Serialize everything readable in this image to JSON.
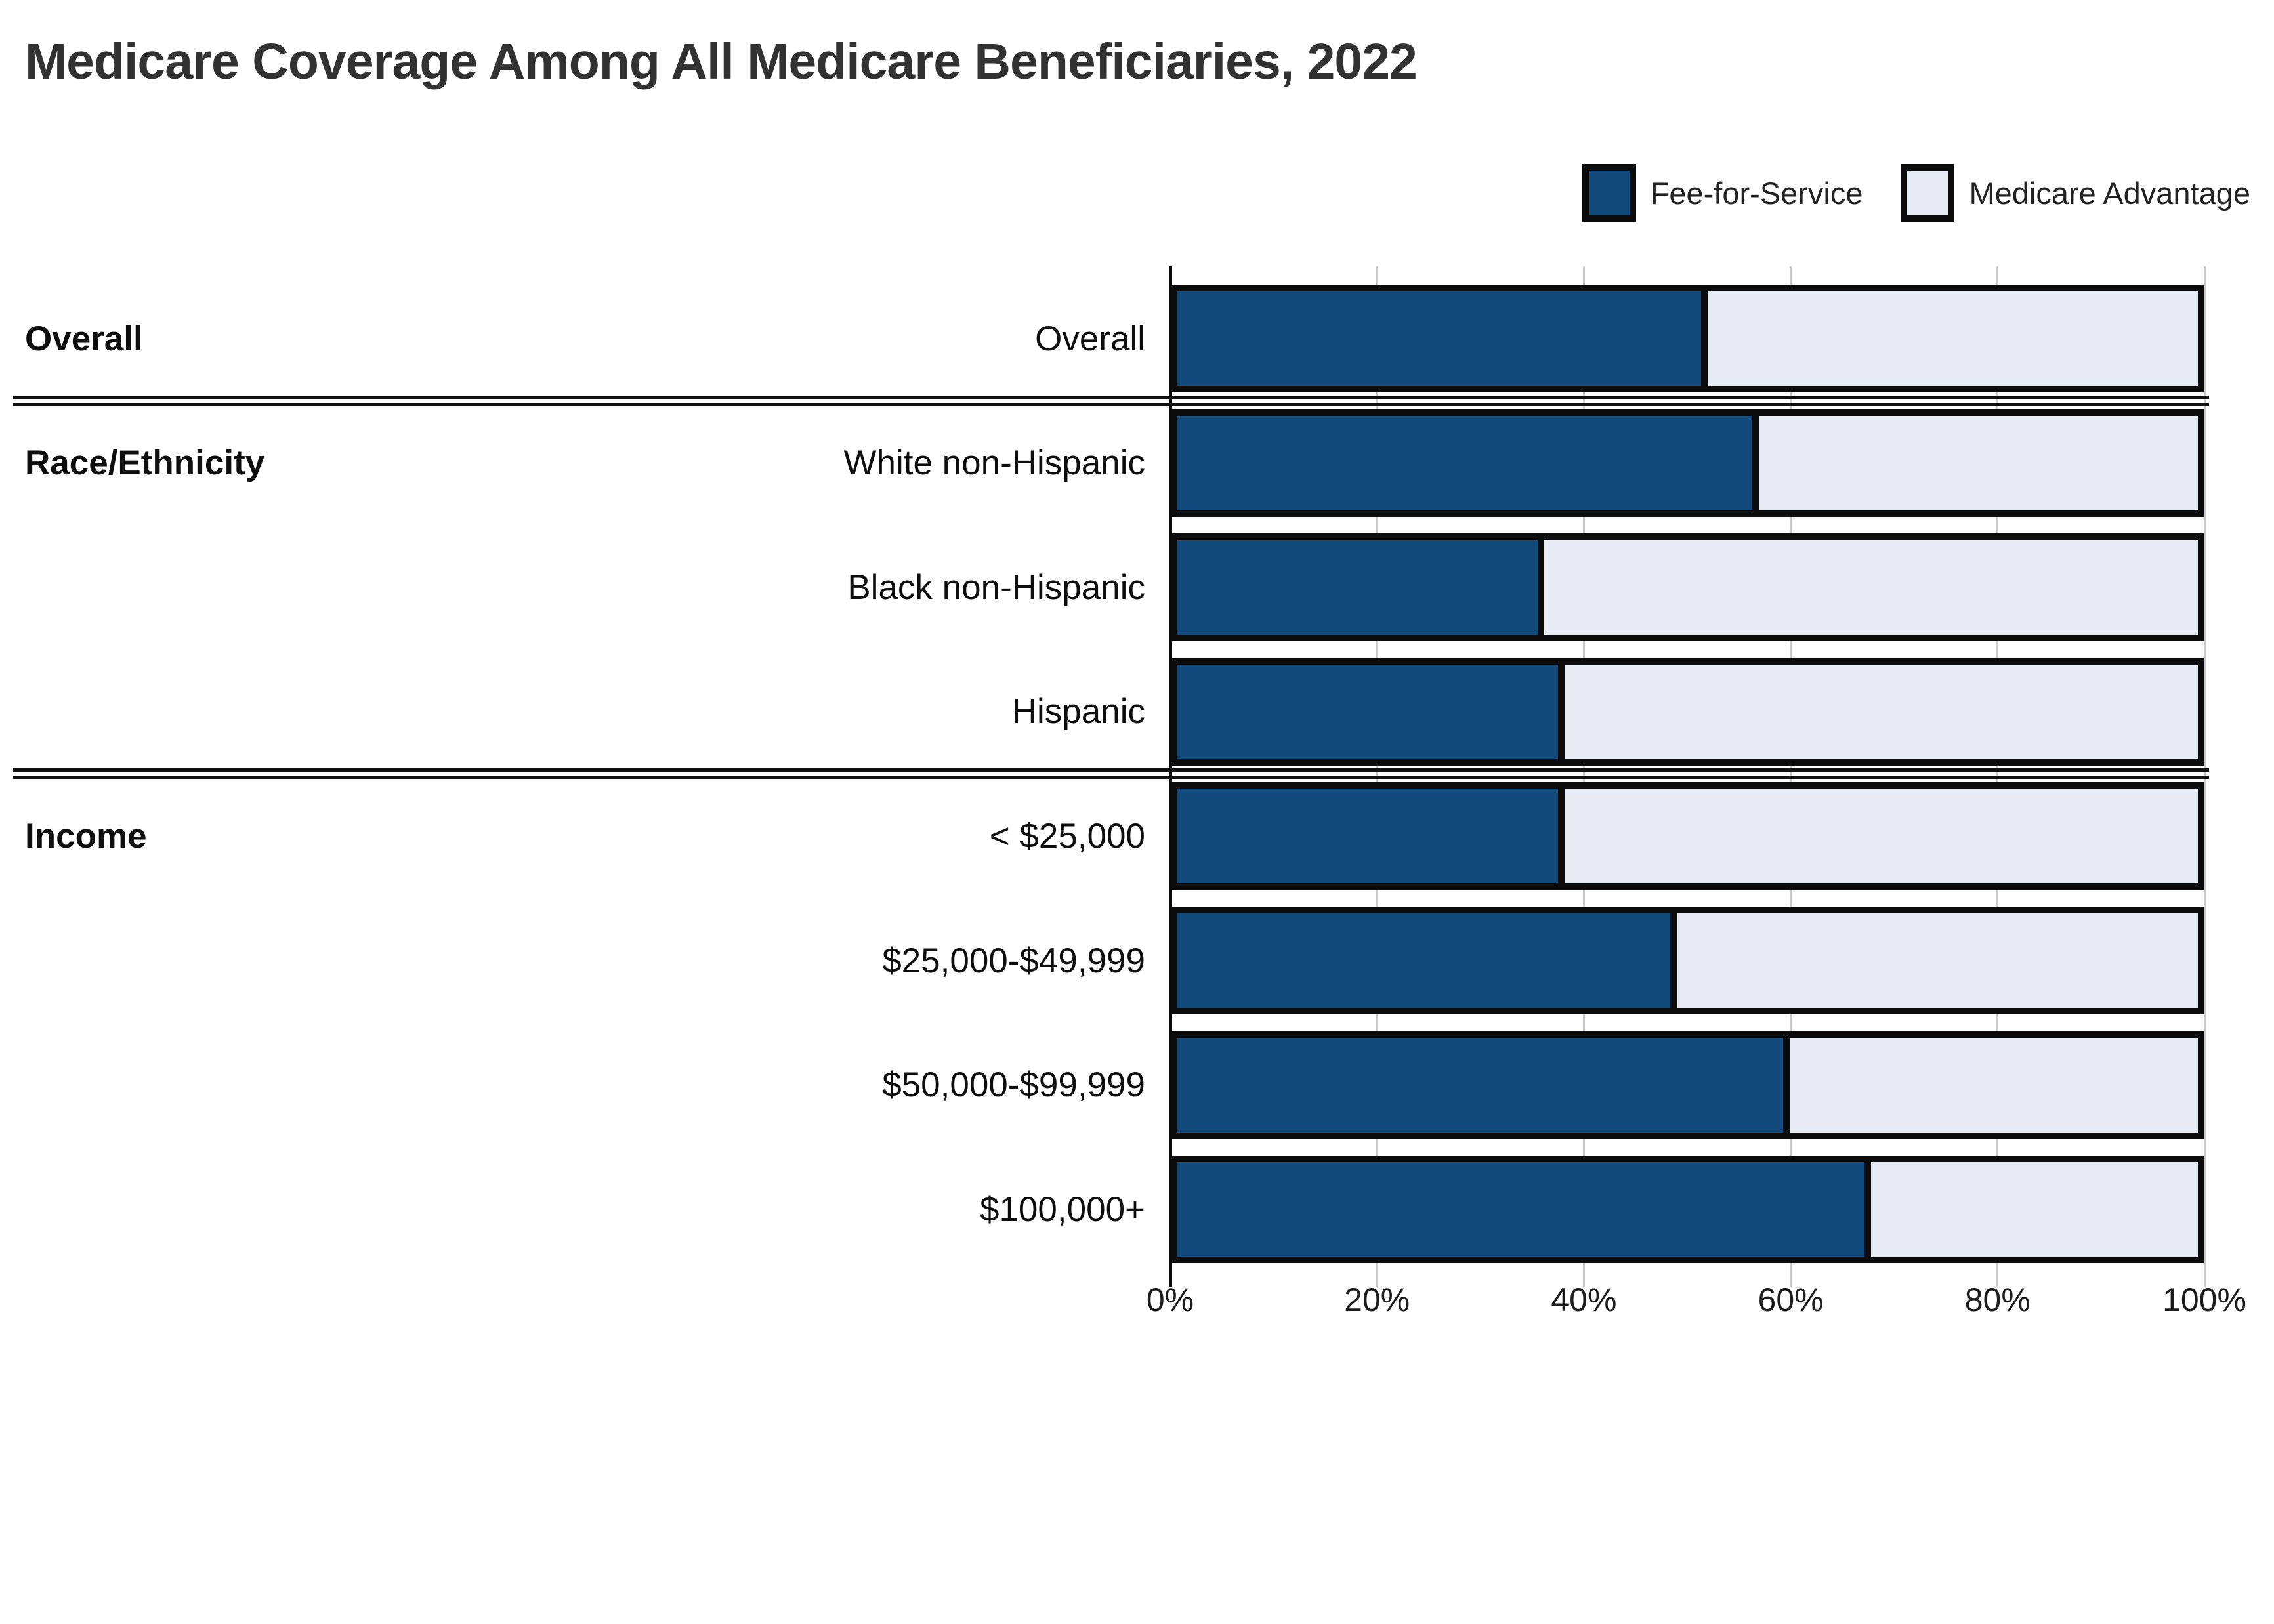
{
  "title": "Medicare Coverage Among All Medicare Beneficiaries, 2022",
  "legend": [
    {
      "label": "Fee-for-Service",
      "color": "#134a7c"
    },
    {
      "label": "Medicare Advantage",
      "color": "#e7ebf3"
    }
  ],
  "axis": {
    "tick_labels": [
      "0%",
      "20%",
      "40%",
      "60%",
      "80%",
      "100%"
    ],
    "min": 0,
    "max": 100
  },
  "groups": [
    {
      "label": "Overall",
      "rows": [
        {
          "label": "Overall",
          "ffs": 52,
          "ma": 48
        }
      ]
    },
    {
      "label": "Race/Ethnicity",
      "rows": [
        {
          "label": "White non-Hispanic",
          "ffs": 57,
          "ma": 43
        },
        {
          "label": "Black non-Hispanic",
          "ffs": 36,
          "ma": 64
        },
        {
          "label": "Hispanic",
          "ffs": 38,
          "ma": 62
        }
      ]
    },
    {
      "label": "Income",
      "rows": [
        {
          "label": "< $25,000",
          "ffs": 38,
          "ma": 62
        },
        {
          "label": "$25,000-$49,999",
          "ffs": 49,
          "ma": 51
        },
        {
          "label": "$50,000-$99,999",
          "ffs": 60,
          "ma": 40
        },
        {
          "label": "$100,000+",
          "ffs": 68,
          "ma": 32
        }
      ]
    }
  ],
  "chart_data": {
    "type": "bar",
    "orientation": "horizontal",
    "stacked": true,
    "title": "Medicare Coverage Among All Medicare Beneficiaries, 2022",
    "categories": [
      "Overall",
      "White non-Hispanic",
      "Black non-Hispanic",
      "Hispanic",
      "< $25,000",
      "$25,000-$49,999",
      "$50,000-$99,999",
      "$100,000+"
    ],
    "category_groups": [
      {
        "label": "Overall",
        "categories": [
          "Overall"
        ]
      },
      {
        "label": "Race/Ethnicity",
        "categories": [
          "White non-Hispanic",
          "Black non-Hispanic",
          "Hispanic"
        ]
      },
      {
        "label": "Income",
        "categories": [
          "< $25,000",
          "$25,000-$49,999",
          "$50,000-$99,999",
          "$100,000+"
        ]
      }
    ],
    "series": [
      {
        "name": "Fee-for-Service",
        "color": "#134a7c",
        "values": [
          52,
          57,
          36,
          38,
          38,
          49,
          60,
          68
        ]
      },
      {
        "name": "Medicare Advantage",
        "color": "#e7ebf3",
        "values": [
          48,
          43,
          64,
          62,
          62,
          51,
          40,
          32
        ]
      }
    ],
    "units": "percent",
    "xlim": [
      0,
      100
    ],
    "x_ticks": [
      "0%",
      "20%",
      "40%",
      "60%",
      "80%",
      "100%"
    ],
    "xlabel": "",
    "ylabel": "",
    "grid": true,
    "legend_position": "top-right"
  }
}
